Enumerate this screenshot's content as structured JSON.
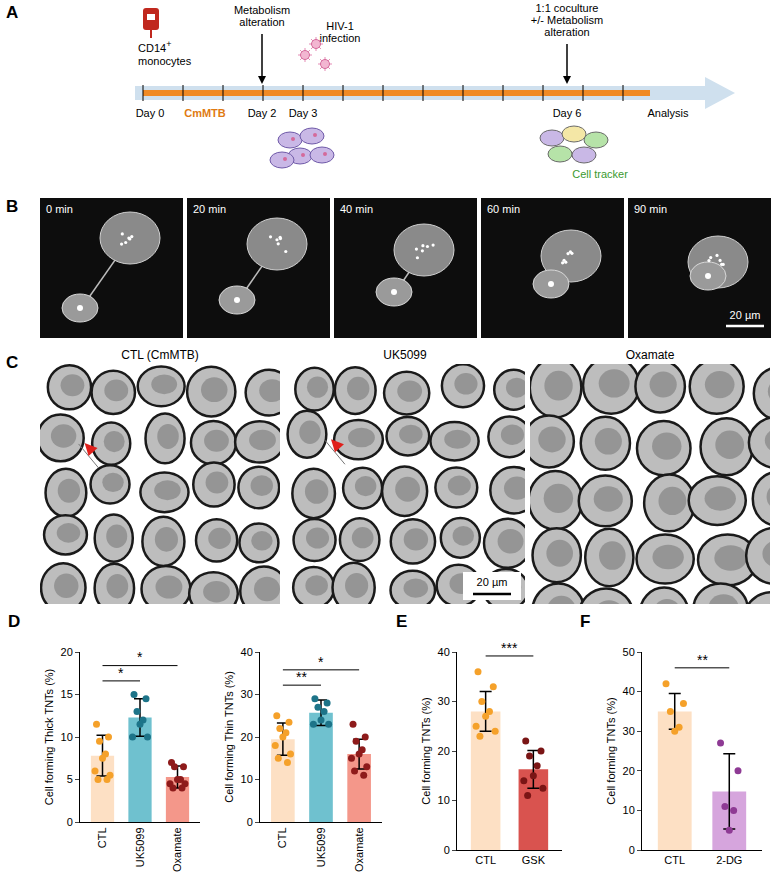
{
  "panel_A": {
    "label": "A",
    "start": {
      "marker": "CD14",
      "superscript": "+",
      "text": "monocytes"
    },
    "medium": "CmMTB",
    "days": [
      "Day 0",
      "Day 2",
      "Day 3",
      "Day 6"
    ],
    "treatment": "Metabolism alteration",
    "infection": "HIV-1 infection",
    "coculture": [
      "1:1 coculture",
      "+/- Metabolism alteration"
    ],
    "cell_tracker": "Cell tracker",
    "end": "Analysis"
  },
  "panel_B": {
    "label": "B",
    "frames": [
      "0 min",
      "20 min",
      "40 min",
      "60 min",
      "90 min"
    ],
    "scale_bar": "20 µm"
  },
  "panel_C": {
    "label": "C",
    "images": [
      "CTL (CmMTB)",
      "UK5099",
      "Oxamate"
    ],
    "scale_bar": "20 µm"
  },
  "chart_data": [
    {
      "panel": "D",
      "type": "bar",
      "categories": [
        "CTL",
        "UK5099",
        "Oxamate"
      ],
      "values": [
        7.8,
        12.3,
        5.3
      ],
      "error": [
        2.4,
        2.2,
        1.3
      ],
      "points": [
        [
          11.5,
          10,
          9.5,
          8,
          7.5,
          6,
          5.5,
          5,
          5
        ],
        [
          15,
          14.5,
          13,
          12,
          11.5,
          10,
          10
        ],
        [
          7,
          6.5,
          6.5,
          5,
          5,
          4.5,
          4.5,
          4,
          4
        ]
      ],
      "colors": [
        "#fde0c4",
        "#6fc1cf",
        "#f4978a"
      ],
      "point_colors": [
        "#f5a12a",
        "#1d7489",
        "#8e1b1b"
      ],
      "y_label": "Cell forming Thick TNTs (%)",
      "ylim": [
        0,
        20
      ],
      "yticks": [
        0,
        5,
        10,
        15,
        20
      ],
      "significance": [
        {
          "pair": [
            0,
            1
          ],
          "label": "*"
        },
        {
          "pair": [
            0,
            2
          ],
          "label": "*"
        }
      ]
    },
    {
      "type": "bar",
      "categories": [
        "CTL",
        "UK5099",
        "Oxamate"
      ],
      "values": [
        19.5,
        25.7,
        16
      ],
      "error": [
        3.8,
        3,
        3.5
      ],
      "points": [
        [
          25,
          23.5,
          22,
          21,
          20,
          18,
          16,
          15,
          14
        ],
        [
          29,
          28,
          27,
          26,
          24,
          23,
          23
        ],
        [
          23,
          20,
          19,
          17,
          16,
          15,
          13,
          12,
          11
        ]
      ],
      "colors": [
        "#fde0c4",
        "#6fc1cf",
        "#f4978a"
      ],
      "point_colors": [
        "#f5a12a",
        "#1d7489",
        "#8e1b1b"
      ],
      "y_label": "Cell forming Thin TNTs (%)",
      "ylim": [
        0,
        40
      ],
      "yticks": [
        0,
        10,
        20,
        30,
        40
      ],
      "significance": [
        {
          "pair": [
            0,
            1
          ],
          "label": "**"
        },
        {
          "pair": [
            0,
            2
          ],
          "label": "*"
        }
      ]
    },
    {
      "panel": "E",
      "type": "bar",
      "categories": [
        "CTL",
        "GSK"
      ],
      "values": [
        28,
        16.3
      ],
      "error": [
        4,
        3.8
      ],
      "points": [
        [
          36,
          33,
          30,
          28,
          27,
          25,
          24,
          23
        ],
        [
          22,
          20,
          19,
          17,
          15,
          14,
          12.5,
          11
        ]
      ],
      "colors": [
        "#fde0c4",
        "#d9534f"
      ],
      "point_colors": [
        "#f5a12a",
        "#7a1515"
      ],
      "y_label": "Cell forming TNTs (%)",
      "ylim": [
        0,
        40
      ],
      "yticks": [
        0,
        10,
        20,
        30,
        40
      ],
      "significance": [
        {
          "pair": [
            0,
            1
          ],
          "label": "***"
        }
      ]
    },
    {
      "panel": "F",
      "type": "bar",
      "categories": [
        "CTL",
        "2-DG"
      ],
      "values": [
        35,
        14.8
      ],
      "error": [
        4.5,
        9.5
      ],
      "points": [
        [
          42,
          37,
          35,
          31,
          30
        ],
        [
          27,
          20,
          11,
          10,
          5
        ]
      ],
      "colors": [
        "#fde0c4",
        "#d6a5dd"
      ],
      "point_colors": [
        "#f5a12a",
        "#8e3a94"
      ],
      "y_label": "Cell forming TNTs (%)",
      "ylim": [
        0,
        50
      ],
      "yticks": [
        0,
        10,
        20,
        30,
        40,
        50
      ],
      "significance": [
        {
          "pair": [
            0,
            1
          ],
          "label": "**"
        }
      ]
    }
  ]
}
